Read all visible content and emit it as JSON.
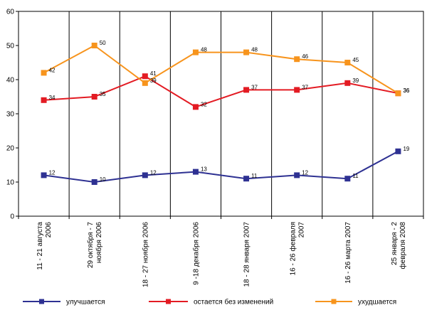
{
  "chart_data": {
    "type": "line",
    "title": "",
    "xlabel": "",
    "ylabel": "",
    "ylim": [
      0,
      60
    ],
    "yticks": [
      0,
      10,
      20,
      30,
      40,
      50,
      60
    ],
    "grid": "vertical lines between categories",
    "legend_position": "bottom",
    "categories": [
      [
        "11 - 21 августа",
        "2006"
      ],
      [
        "29 октября - 7",
        "ноября 2006"
      ],
      [
        "18 - 27 ноября 2006"
      ],
      [
        "9 -18 декабря 2006"
      ],
      [
        "18 - 28 января 2007"
      ],
      [
        "16 - 26 февраля",
        "2007"
      ],
      [
        "16 - 26 марта 2007"
      ],
      [
        "25 января - 2",
        "февраля 2008"
      ]
    ],
    "series": [
      {
        "name": "улучшается",
        "color": "#2e3192",
        "marker": "square",
        "values": [
          12,
          10,
          12,
          13,
          11,
          12,
          11,
          19
        ],
        "labels": [
          "12",
          "10",
          "12",
          "13",
          "11",
          "12",
          "11",
          "19"
        ]
      },
      {
        "name": "остается без изменений",
        "color": "#e31b23",
        "marker": "square",
        "values": [
          34,
          35,
          41,
          32,
          37,
          37,
          39,
          36
        ],
        "labels": [
          "34",
          "35",
          "41",
          "32",
          "37",
          "37",
          "39",
          "36"
        ]
      },
      {
        "name": "ухудшается",
        "color": "#f7941d",
        "marker": "square",
        "values": [
          42,
          50,
          39,
          48,
          48,
          46,
          45,
          36
        ],
        "labels": [
          "42",
          "50",
          "39",
          "48",
          "48",
          "46",
          "45",
          "36"
        ]
      }
    ]
  }
}
